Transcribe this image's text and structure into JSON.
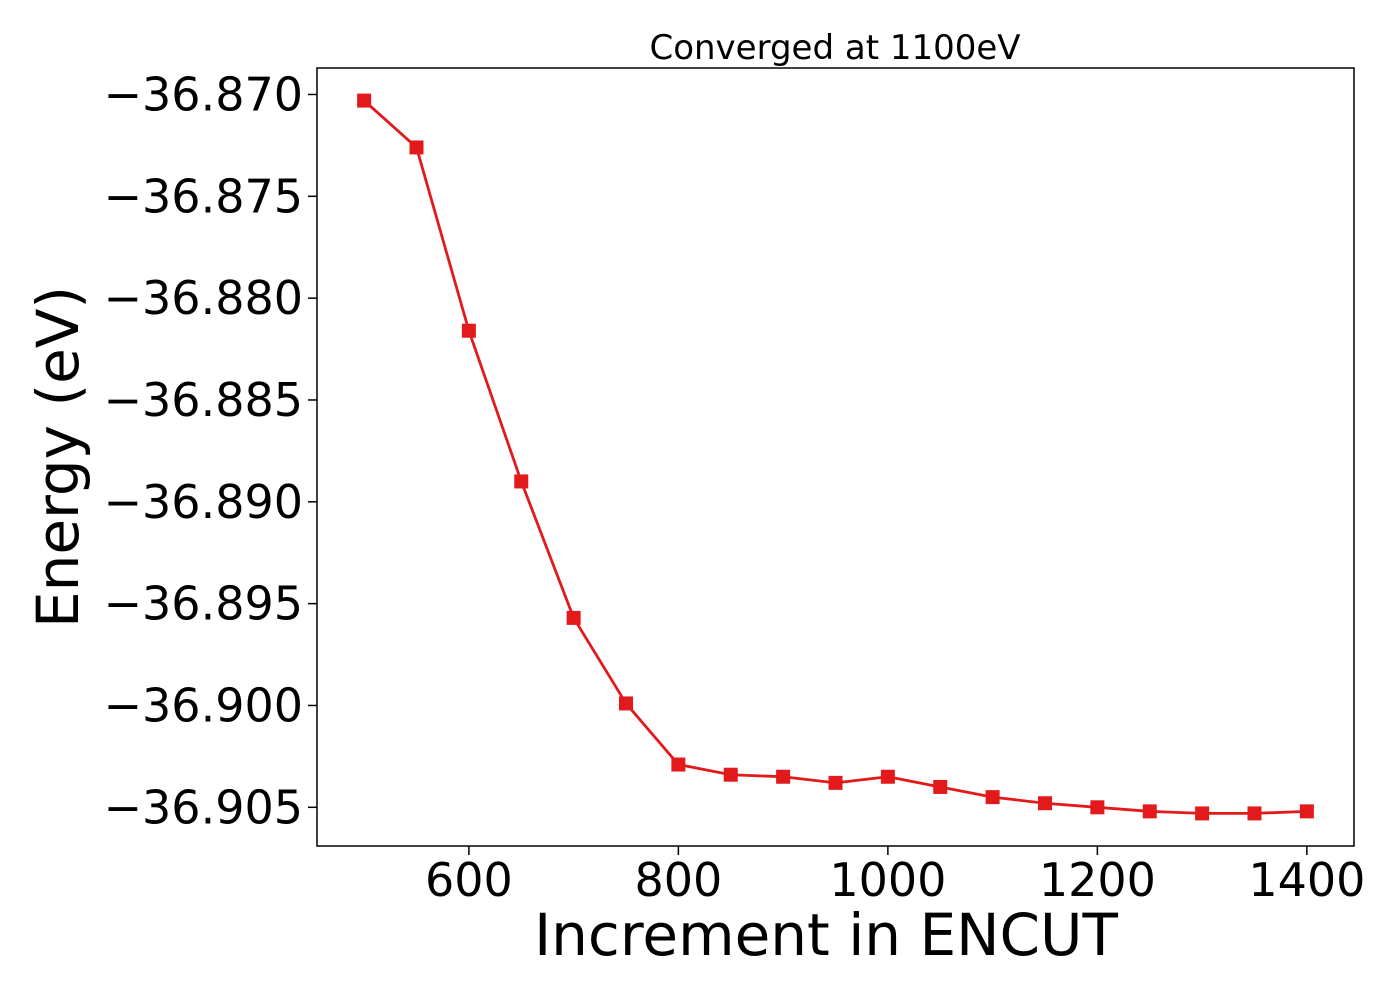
{
  "chart_data": {
    "type": "line",
    "title": "Converged at 1100eV",
    "xlabel": "Increment in ENCUT",
    "ylabel": "Energy (eV)",
    "x": [
      500,
      550,
      600,
      650,
      700,
      750,
      800,
      850,
      900,
      950,
      1000,
      1050,
      1100,
      1150,
      1200,
      1250,
      1300,
      1350,
      1400
    ],
    "series": [
      {
        "values": [
          -36.8703,
          -36.8726,
          -36.8816,
          -36.889,
          -36.8957,
          -36.8999,
          -36.9029,
          -36.9034,
          -36.9035,
          -36.9038,
          -36.9035,
          -36.904,
          -36.9045,
          -36.9048,
          -36.905,
          -36.9052,
          -36.9053,
          -36.9053,
          -36.9052
        ],
        "color": "#e31a1c",
        "marker": "square"
      }
    ],
    "xlim": [
      455,
      1445
    ],
    "ylim": [
      -36.9069,
      -36.8687
    ],
    "xticks": [
      600,
      800,
      1000,
      1200,
      1400
    ],
    "xtick_labels": [
      "600",
      "800",
      "1000",
      "1200",
      "1400"
    ],
    "yticks": [
      -36.87,
      -36.875,
      -36.88,
      -36.885,
      -36.89,
      -36.895,
      -36.9,
      -36.905
    ],
    "ytick_labels": [
      "−36.870",
      "−36.875",
      "−36.880",
      "−36.885",
      "−36.890",
      "−36.895",
      "−36.900",
      "−36.905"
    ],
    "grid": false,
    "legend": "none"
  }
}
